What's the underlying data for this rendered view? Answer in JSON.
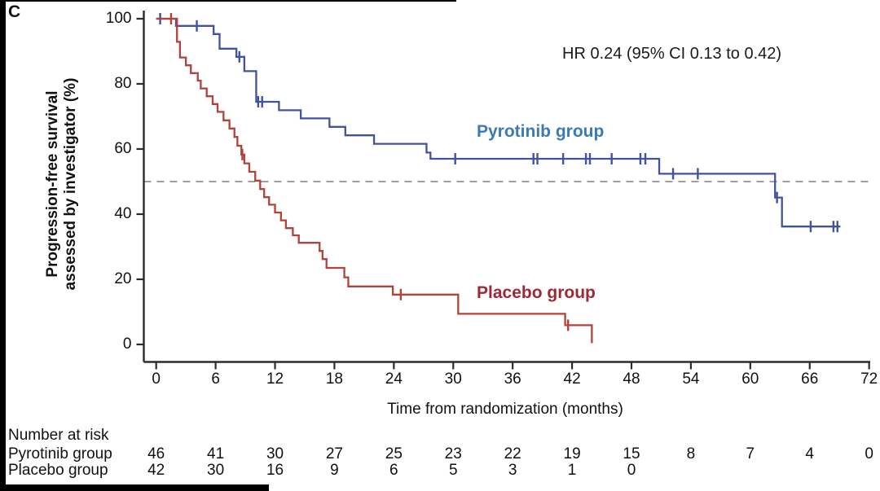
{
  "panel_label": "C",
  "annotation": "HR 0.24 (95% CI 0.13 to 0.42)",
  "y_axis": {
    "label_line1": "Progression-free survival",
    "label_line2": "assessed by investigator (%)",
    "ticks": [
      100,
      80,
      60,
      40,
      20,
      0
    ]
  },
  "x_axis": {
    "label": "Time from randomization (months)",
    "ticks": [
      0,
      6,
      12,
      18,
      24,
      30,
      36,
      42,
      48,
      54,
      60,
      66,
      72
    ]
  },
  "colors": {
    "pyrotinib_curve": "#41539f",
    "pyrotinib_label": "#3a7ab8",
    "placebo_curve": "#b2423a",
    "placebo_label": "#9d2936",
    "axis": "#2b2b2b",
    "reference_line": "#909090"
  },
  "chart_data": {
    "type": "line",
    "subtype": "kaplan-meier-step",
    "xlabel": "Time from randomization (months)",
    "ylabel": "Progression-free survival assessed by investigator (%)",
    "xlim": [
      0,
      72
    ],
    "ylim": [
      0,
      100
    ],
    "grid": false,
    "reference_line_y": 50,
    "annotation": "HR 0.24 (95% CI 0.13 to 0.42)",
    "series": [
      {
        "name": "Pyrotinib group",
        "color": "#41539f",
        "label_color": "#3a7ab8",
        "steps": [
          [
            0,
            100
          ],
          [
            2.0,
            97.8
          ],
          [
            5.8,
            95.3
          ],
          [
            6.4,
            90.8
          ],
          [
            8.1,
            88.3
          ],
          [
            8.9,
            83.9
          ],
          [
            10.1,
            74.5
          ],
          [
            12.4,
            71.9
          ],
          [
            14.6,
            69.4
          ],
          [
            17.5,
            66.8
          ],
          [
            19.1,
            64.2
          ],
          [
            22.0,
            61.6
          ],
          [
            27.3,
            58.9
          ],
          [
            27.7,
            57.0
          ],
          [
            50.8,
            52.4
          ],
          [
            62.5,
            45.1
          ],
          [
            63.2,
            36.2
          ]
        ],
        "end": 69.1,
        "censors": [
          [
            0.4,
            100
          ],
          [
            4.1,
            97.8
          ],
          [
            8.4,
            88.3
          ],
          [
            10.3,
            74.5
          ],
          [
            10.7,
            74.5
          ],
          [
            30.2,
            57.0
          ],
          [
            38.1,
            57.0
          ],
          [
            38.5,
            57.0
          ],
          [
            41.1,
            57.0
          ],
          [
            43.4,
            57.0
          ],
          [
            43.8,
            57.0
          ],
          [
            46.0,
            57.0
          ],
          [
            48.9,
            57.0
          ],
          [
            49.4,
            57.0
          ],
          [
            52.2,
            52.4
          ],
          [
            54.7,
            52.4
          ],
          [
            62.7,
            45.1
          ],
          [
            66.1,
            36.2
          ],
          [
            68.4,
            36.2
          ],
          [
            68.8,
            36.2
          ]
        ]
      },
      {
        "name": "Placebo group",
        "color": "#b2423a",
        "label_color": "#9d2936",
        "steps": [
          [
            0,
            100
          ],
          [
            2.1,
            92.9
          ],
          [
            2.4,
            88.1
          ],
          [
            3.0,
            85.7
          ],
          [
            3.5,
            83.3
          ],
          [
            4.2,
            81.0
          ],
          [
            4.5,
            78.6
          ],
          [
            5.1,
            76.2
          ],
          [
            5.7,
            73.8
          ],
          [
            6.2,
            71.4
          ],
          [
            6.8,
            68.8
          ],
          [
            7.4,
            66.3
          ],
          [
            7.9,
            63.7
          ],
          [
            8.2,
            61.0
          ],
          [
            8.6,
            58.3
          ],
          [
            8.9,
            55.6
          ],
          [
            9.4,
            53.0
          ],
          [
            10.0,
            50.3
          ],
          [
            10.5,
            47.7
          ],
          [
            10.9,
            45.2
          ],
          [
            11.4,
            42.9
          ],
          [
            12.0,
            40.5
          ],
          [
            12.6,
            38.1
          ],
          [
            13.1,
            35.7
          ],
          [
            13.8,
            33.5
          ],
          [
            14.4,
            31.2
          ],
          [
            16.5,
            28.7
          ],
          [
            16.8,
            26.2
          ],
          [
            17.2,
            23.5
          ],
          [
            19.0,
            20.6
          ],
          [
            19.4,
            17.8
          ],
          [
            23.9,
            15.3
          ],
          [
            30.5,
            9.4
          ],
          [
            41.3,
            5.9
          ],
          [
            44.0,
            0.4
          ]
        ],
        "end": 44.0,
        "censors": [
          [
            1.5,
            100
          ],
          [
            8.7,
            58.3
          ],
          [
            24.7,
            15.3
          ],
          [
            41.6,
            5.9
          ]
        ]
      }
    ]
  },
  "risk_table": {
    "title": "Number at risk",
    "rows": [
      {
        "label": "Pyrotinib group",
        "values": [
          46,
          41,
          30,
          27,
          25,
          23,
          22,
          19,
          15,
          8,
          7,
          4,
          0
        ]
      },
      {
        "label": "Placebo group",
        "values": [
          42,
          30,
          16,
          9,
          6,
          5,
          3,
          1,
          0
        ]
      }
    ]
  }
}
